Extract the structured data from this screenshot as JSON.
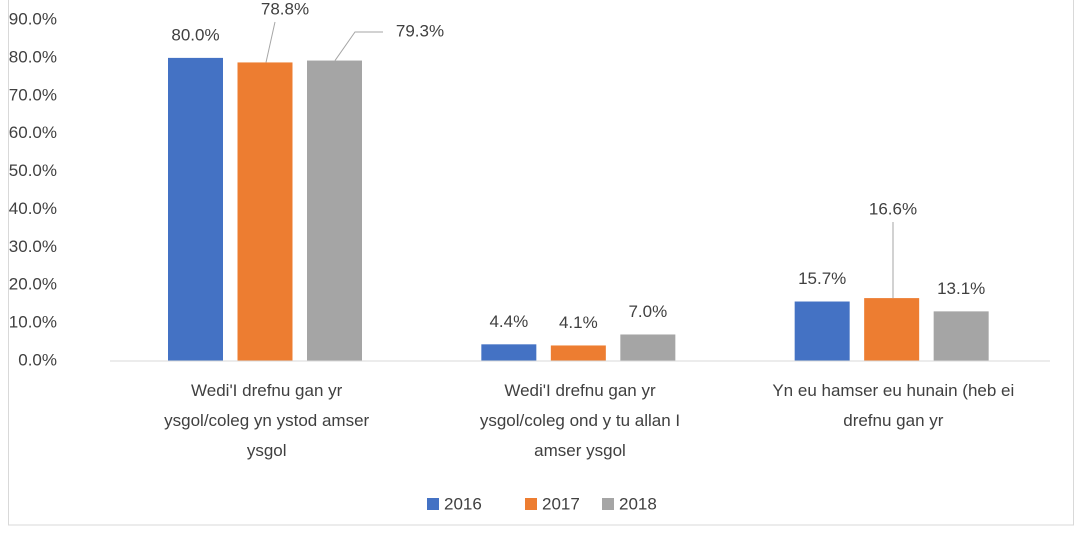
{
  "chart_data": {
    "type": "bar",
    "categories": [
      "Wedi'I drefnu gan yr\nysgol/coleg yn ystod amser\nysgol",
      "Wedi'I drefnu gan yr\nysgol/coleg ond y tu allan I\namser ysgol",
      "Yn eu hamser eu hunain (heb ei\ndrefnu gan yr"
    ],
    "series": [
      {
        "name": "2016",
        "color": "#4472c4",
        "values": [
          80.0,
          4.4,
          15.7
        ],
        "value_labels": [
          "80.0%",
          "4.4%",
          "15.7%"
        ]
      },
      {
        "name": "2017",
        "color": "#ed7d31",
        "values": [
          78.8,
          4.1,
          16.6
        ],
        "value_labels": [
          "78.8%",
          "4.1%",
          "16.6%"
        ]
      },
      {
        "name": "2018",
        "color": "#a5a5a5",
        "values": [
          79.3,
          7.0,
          13.1
        ],
        "value_labels": [
          "79.3%",
          "7.0%",
          "13.1%"
        ]
      }
    ],
    "ylim": [
      0,
      90
    ],
    "yticks": [
      {
        "value": 0,
        "label": "0.0%"
      },
      {
        "value": 10,
        "label": "10.0%"
      },
      {
        "value": 20,
        "label": "20.0%"
      },
      {
        "value": 30,
        "label": "30.0%"
      },
      {
        "value": 40,
        "label": "40.0%"
      },
      {
        "value": 50,
        "label": "50.0%"
      },
      {
        "value": 60,
        "label": "60.0%"
      },
      {
        "value": 70,
        "label": "70.0%"
      },
      {
        "value": 80,
        "label": "80.0%"
      },
      {
        "value": 90,
        "label": "90.0%"
      }
    ],
    "grid": false,
    "legend": "bottom"
  }
}
